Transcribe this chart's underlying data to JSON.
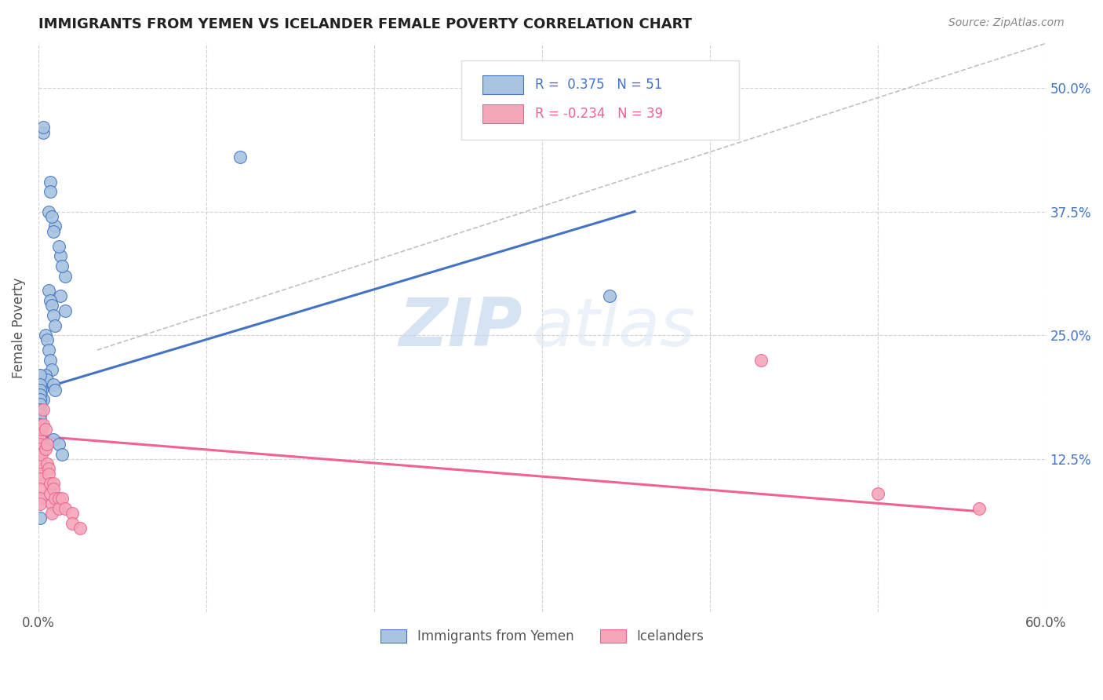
{
  "title": "IMMIGRANTS FROM YEMEN VS ICELANDER FEMALE POVERTY CORRELATION CHART",
  "source": "Source: ZipAtlas.com",
  "ylabel": "Female Poverty",
  "xlim": [
    0.0,
    0.6
  ],
  "ylim": [
    -0.03,
    0.545
  ],
  "blue_color": "#a8c4e0",
  "pink_color": "#f4a7b9",
  "blue_line_color": "#4472c4",
  "pink_line_color": "#f06292",
  "diagonal_color": "#c0c0c0",
  "watermark_zip": "ZIP",
  "watermark_atlas": "atlas",
  "scatter_blue": [
    [
      0.003,
      0.455
    ],
    [
      0.003,
      0.46
    ],
    [
      0.007,
      0.405
    ],
    [
      0.007,
      0.395
    ],
    [
      0.01,
      0.36
    ],
    [
      0.013,
      0.33
    ],
    [
      0.016,
      0.31
    ],
    [
      0.013,
      0.29
    ],
    [
      0.016,
      0.275
    ],
    [
      0.006,
      0.375
    ],
    [
      0.008,
      0.37
    ],
    [
      0.009,
      0.355
    ],
    [
      0.012,
      0.34
    ],
    [
      0.014,
      0.32
    ],
    [
      0.006,
      0.295
    ],
    [
      0.007,
      0.285
    ],
    [
      0.008,
      0.28
    ],
    [
      0.009,
      0.27
    ],
    [
      0.01,
      0.26
    ],
    [
      0.004,
      0.25
    ],
    [
      0.005,
      0.245
    ],
    [
      0.006,
      0.235
    ],
    [
      0.007,
      0.225
    ],
    [
      0.008,
      0.215
    ],
    [
      0.004,
      0.21
    ],
    [
      0.005,
      0.205
    ],
    [
      0.009,
      0.2
    ],
    [
      0.01,
      0.195
    ],
    [
      0.002,
      0.195
    ],
    [
      0.003,
      0.185
    ],
    [
      0.001,
      0.21
    ],
    [
      0.001,
      0.2
    ],
    [
      0.001,
      0.195
    ],
    [
      0.001,
      0.19
    ],
    [
      0.001,
      0.185
    ],
    [
      0.001,
      0.18
    ],
    [
      0.001,
      0.175
    ],
    [
      0.001,
      0.17
    ],
    [
      0.001,
      0.165
    ],
    [
      0.001,
      0.16
    ],
    [
      0.001,
      0.155
    ],
    [
      0.001,
      0.15
    ],
    [
      0.001,
      0.145
    ],
    [
      0.001,
      0.135
    ],
    [
      0.001,
      0.125
    ],
    [
      0.001,
      0.065
    ],
    [
      0.009,
      0.145
    ],
    [
      0.012,
      0.14
    ],
    [
      0.014,
      0.13
    ],
    [
      0.12,
      0.43
    ],
    [
      0.34,
      0.29
    ]
  ],
  "scatter_pink": [
    [
      0.001,
      0.15
    ],
    [
      0.001,
      0.145
    ],
    [
      0.001,
      0.14
    ],
    [
      0.001,
      0.135
    ],
    [
      0.001,
      0.13
    ],
    [
      0.001,
      0.125
    ],
    [
      0.001,
      0.12
    ],
    [
      0.001,
      0.11
    ],
    [
      0.001,
      0.105
    ],
    [
      0.001,
      0.095
    ],
    [
      0.001,
      0.085
    ],
    [
      0.001,
      0.08
    ],
    [
      0.002,
      0.155
    ],
    [
      0.002,
      0.13
    ],
    [
      0.003,
      0.175
    ],
    [
      0.003,
      0.16
    ],
    [
      0.004,
      0.155
    ],
    [
      0.004,
      0.135
    ],
    [
      0.005,
      0.14
    ],
    [
      0.005,
      0.12
    ],
    [
      0.006,
      0.115
    ],
    [
      0.006,
      0.11
    ],
    [
      0.007,
      0.1
    ],
    [
      0.007,
      0.09
    ],
    [
      0.008,
      0.08
    ],
    [
      0.008,
      0.07
    ],
    [
      0.009,
      0.1
    ],
    [
      0.009,
      0.095
    ],
    [
      0.01,
      0.085
    ],
    [
      0.012,
      0.085
    ],
    [
      0.012,
      0.075
    ],
    [
      0.014,
      0.085
    ],
    [
      0.016,
      0.075
    ],
    [
      0.02,
      0.07
    ],
    [
      0.02,
      0.06
    ],
    [
      0.025,
      0.055
    ],
    [
      0.43,
      0.225
    ],
    [
      0.5,
      0.09
    ],
    [
      0.56,
      0.075
    ]
  ],
  "blue_line": [
    [
      0.0,
      0.195
    ],
    [
      0.355,
      0.375
    ]
  ],
  "pink_line": [
    [
      0.0,
      0.148
    ],
    [
      0.56,
      0.072
    ]
  ],
  "diag_line": [
    [
      0.035,
      0.235
    ],
    [
      0.6,
      0.545
    ]
  ]
}
